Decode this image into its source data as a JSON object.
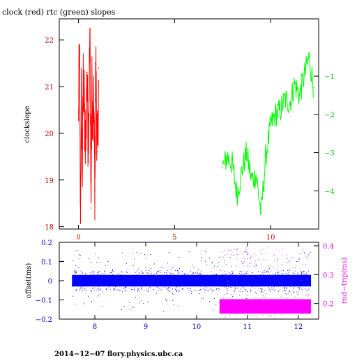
{
  "chart_data": [
    {
      "type": "line",
      "title": "clock (red) rtc (green) slopes",
      "ylabel": "clockslope",
      "xticks": [
        0,
        5,
        10
      ],
      "xlim": [
        -1,
        12.5
      ],
      "left_axis": {
        "ylim": [
          17.95,
          22.45
        ],
        "ticks": [
          18,
          19,
          20,
          21,
          22
        ],
        "color": "#c00000"
      },
      "right_axis": {
        "ylim": [
          -5.0,
          0.5
        ],
        "ticks": [
          -1,
          -2,
          -3,
          -4
        ],
        "color": "#00c000"
      },
      "series": [
        {
          "color": "#ff0000",
          "axis": "left",
          "x": [
            0.0,
            0.05,
            0.1,
            0.15,
            0.2,
            0.25,
            0.3,
            0.35,
            0.4,
            0.45,
            0.5,
            0.55,
            0.6,
            0.65,
            0.7,
            0.75,
            0.8,
            0.85,
            0.9,
            0.95,
            1.0,
            1.05
          ],
          "y": [
            20.3,
            21.9,
            18.1,
            20.8,
            19.2,
            21.2,
            20.6,
            19.5,
            20.4,
            21.3,
            19.8,
            20.9,
            22.2,
            18.4,
            21.0,
            19.9,
            20.7,
            18.8,
            21.5,
            20.2,
            19.6,
            21.4
          ]
        },
        {
          "color": "#00ff00",
          "axis": "right",
          "x": [
            7.5,
            7.75,
            8.0,
            8.25,
            8.5,
            8.75,
            9.0,
            9.25,
            9.5,
            9.75,
            10.0,
            10.25,
            10.5,
            10.75,
            11.0,
            11.25,
            11.5,
            11.75,
            12.0,
            12.25
          ],
          "y": [
            -3.4,
            -3.1,
            -3.3,
            -4.1,
            -3.5,
            -3.0,
            -3.7,
            -3.6,
            -4.6,
            -3.1,
            -2.3,
            -2.0,
            -1.9,
            -1.6,
            -1.7,
            -1.2,
            -1.5,
            -1.0,
            -0.5,
            -1.3
          ]
        }
      ]
    },
    {
      "type": "scatter",
      "ylabel_left": "offset(ms)",
      "ylabel_right": "rnd−trip(ms)",
      "xticks": [
        8,
        9,
        10,
        11,
        12
      ],
      "xlim": [
        7.3,
        12.4
      ],
      "left_axis": {
        "ylim": [
          -0.2,
          0.2
        ],
        "ticks": [
          0.2,
          0.1,
          0,
          -0.1,
          -0.2
        ],
        "tick_labels": [
          "0.2",
          "0.1",
          "0",
          "−0.1",
          "−0.2"
        ],
        "color": "#0000cc"
      },
      "right_axis": {
        "ylim": [
          0.146,
          0.412
        ],
        "ticks": [
          0.4,
          0.3,
          0.2
        ],
        "color": "#dd00dd"
      },
      "series": [
        {
          "color": "#0000ff",
          "axis": "left",
          "x_range": [
            7.55,
            12.25
          ],
          "band": [
            -0.03,
            0.03
          ],
          "outlier_range": [
            -0.16,
            0.19
          ]
        },
        {
          "color": "#ff00ff",
          "axis": "right",
          "x_range": [
            10.45,
            12.25
          ],
          "band": [
            0.165,
            0.215
          ],
          "outlier_range": [
            0.15,
            0.4
          ]
        }
      ]
    }
  ],
  "footer": "2014−12−07 flory.physics.ubc.ca"
}
